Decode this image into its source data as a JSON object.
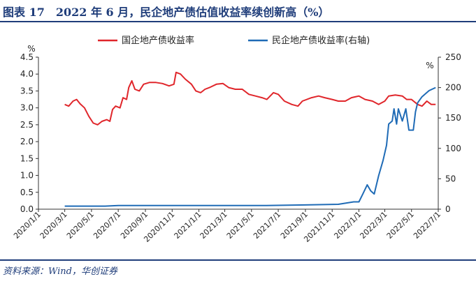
{
  "title": "图表 17　2022 年 6 月，民企地产债估值收益率续创新高（%）",
  "source": "资料来源：Wind，华创证券",
  "chart_data": {
    "type": "line",
    "left_axis_label": "%",
    "right_axis_label": "%",
    "left_ylim": [
      0,
      4.5
    ],
    "left_ticks": [
      "0.0",
      "0.5",
      "1.0",
      "1.5",
      "2.0",
      "2.5",
      "3.0",
      "3.5",
      "4.0",
      "4.5"
    ],
    "right_ylim": [
      0,
      250
    ],
    "right_ticks": [
      "0",
      "50",
      "100",
      "150",
      "200",
      "250"
    ],
    "x_range": [
      "2020-01-01",
      "2022-07-01"
    ],
    "x_ticks": [
      "2020/1/1",
      "2020/3/1",
      "2020/5/1",
      "2020/7/1",
      "2020/9/1",
      "2020/11/1",
      "2021/1/1",
      "2021/3/1",
      "2021/5/1",
      "2021/7/1",
      "2021/9/1",
      "2021/11/1",
      "2022/1/1",
      "2022/3/1",
      "2022/5/1",
      "2022/7/1"
    ],
    "legend_position": "top",
    "series": [
      {
        "name": "国企地产债收益率",
        "axis": "left",
        "color": "#e0262b",
        "points": [
          [
            "2020-03-01",
            3.1
          ],
          [
            "2020-03-10",
            3.05
          ],
          [
            "2020-03-20",
            3.2
          ],
          [
            "2020-03-28",
            3.25
          ],
          [
            "2020-04-05",
            3.12
          ],
          [
            "2020-04-15",
            3.0
          ],
          [
            "2020-04-25",
            2.75
          ],
          [
            "2020-05-05",
            2.55
          ],
          [
            "2020-05-15",
            2.5
          ],
          [
            "2020-05-25",
            2.6
          ],
          [
            "2020-06-05",
            2.65
          ],
          [
            "2020-06-12",
            2.6
          ],
          [
            "2020-06-18",
            2.95
          ],
          [
            "2020-06-25",
            3.05
          ],
          [
            "2020-07-05",
            3.0
          ],
          [
            "2020-07-12",
            3.3
          ],
          [
            "2020-07-20",
            3.25
          ],
          [
            "2020-07-25",
            3.6
          ],
          [
            "2020-08-01",
            3.8
          ],
          [
            "2020-08-08",
            3.55
          ],
          [
            "2020-08-18",
            3.5
          ],
          [
            "2020-08-28",
            3.7
          ],
          [
            "2020-09-10",
            3.75
          ],
          [
            "2020-09-25",
            3.75
          ],
          [
            "2020-10-10",
            3.72
          ],
          [
            "2020-10-25",
            3.65
          ],
          [
            "2020-11-05",
            3.7
          ],
          [
            "2020-11-10",
            4.05
          ],
          [
            "2020-11-20",
            4.0
          ],
          [
            "2020-12-01",
            3.85
          ],
          [
            "2020-12-15",
            3.7
          ],
          [
            "2020-12-25",
            3.5
          ],
          [
            "2021-01-05",
            3.45
          ],
          [
            "2021-01-15",
            3.55
          ],
          [
            "2021-01-25",
            3.6
          ],
          [
            "2021-02-10",
            3.7
          ],
          [
            "2021-02-25",
            3.72
          ],
          [
            "2021-03-10",
            3.6
          ],
          [
            "2021-03-25",
            3.55
          ],
          [
            "2021-04-10",
            3.55
          ],
          [
            "2021-04-25",
            3.4
          ],
          [
            "2021-05-10",
            3.35
          ],
          [
            "2021-05-25",
            3.3
          ],
          [
            "2021-06-05",
            3.25
          ],
          [
            "2021-06-20",
            3.45
          ],
          [
            "2021-07-01",
            3.4
          ],
          [
            "2021-07-15",
            3.2
          ],
          [
            "2021-08-01",
            3.1
          ],
          [
            "2021-08-15",
            3.05
          ],
          [
            "2021-08-25",
            3.2
          ],
          [
            "2021-09-15",
            3.3
          ],
          [
            "2021-10-01",
            3.35
          ],
          [
            "2021-10-15",
            3.3
          ],
          [
            "2021-11-01",
            3.25
          ],
          [
            "2021-11-15",
            3.2
          ],
          [
            "2021-12-01",
            3.2
          ],
          [
            "2021-12-15",
            3.3
          ],
          [
            "2022-01-01",
            3.35
          ],
          [
            "2022-01-15",
            3.25
          ],
          [
            "2022-02-01",
            3.2
          ],
          [
            "2022-02-15",
            3.1
          ],
          [
            "2022-03-01",
            3.2
          ],
          [
            "2022-03-10",
            3.35
          ],
          [
            "2022-03-25",
            3.38
          ],
          [
            "2022-04-10",
            3.35
          ],
          [
            "2022-04-20",
            3.25
          ],
          [
            "2022-05-01",
            3.25
          ],
          [
            "2022-05-15",
            3.1
          ],
          [
            "2022-05-25",
            3.05
          ],
          [
            "2022-06-05",
            3.2
          ],
          [
            "2022-06-15",
            3.1
          ],
          [
            "2022-06-25",
            3.1
          ]
        ]
      },
      {
        "name": "民企地产债收益率(右轴)",
        "axis": "right",
        "color": "#1f6bb6",
        "points": [
          [
            "2020-03-01",
            5
          ],
          [
            "2020-06-01",
            5
          ],
          [
            "2020-07-01",
            6
          ],
          [
            "2020-12-01",
            6
          ],
          [
            "2021-03-01",
            6
          ],
          [
            "2021-06-01",
            6
          ],
          [
            "2021-09-01",
            7
          ],
          [
            "2021-11-15",
            8
          ],
          [
            "2021-12-20",
            12
          ],
          [
            "2022-01-01",
            12
          ],
          [
            "2022-01-10",
            25
          ],
          [
            "2022-01-20",
            40
          ],
          [
            "2022-01-28",
            30
          ],
          [
            "2022-02-05",
            25
          ],
          [
            "2022-02-15",
            55
          ],
          [
            "2022-02-25",
            80
          ],
          [
            "2022-03-05",
            105
          ],
          [
            "2022-03-10",
            140
          ],
          [
            "2022-03-18",
            145
          ],
          [
            "2022-03-22",
            165
          ],
          [
            "2022-03-28",
            140
          ],
          [
            "2022-04-01",
            165
          ],
          [
            "2022-04-10",
            145
          ],
          [
            "2022-04-18",
            165
          ],
          [
            "2022-04-25",
            130
          ],
          [
            "2022-05-05",
            130
          ],
          [
            "2022-05-10",
            160
          ],
          [
            "2022-05-15",
            175
          ],
          [
            "2022-05-25",
            185
          ],
          [
            "2022-06-10",
            195
          ],
          [
            "2022-06-25",
            200
          ]
        ]
      }
    ]
  }
}
